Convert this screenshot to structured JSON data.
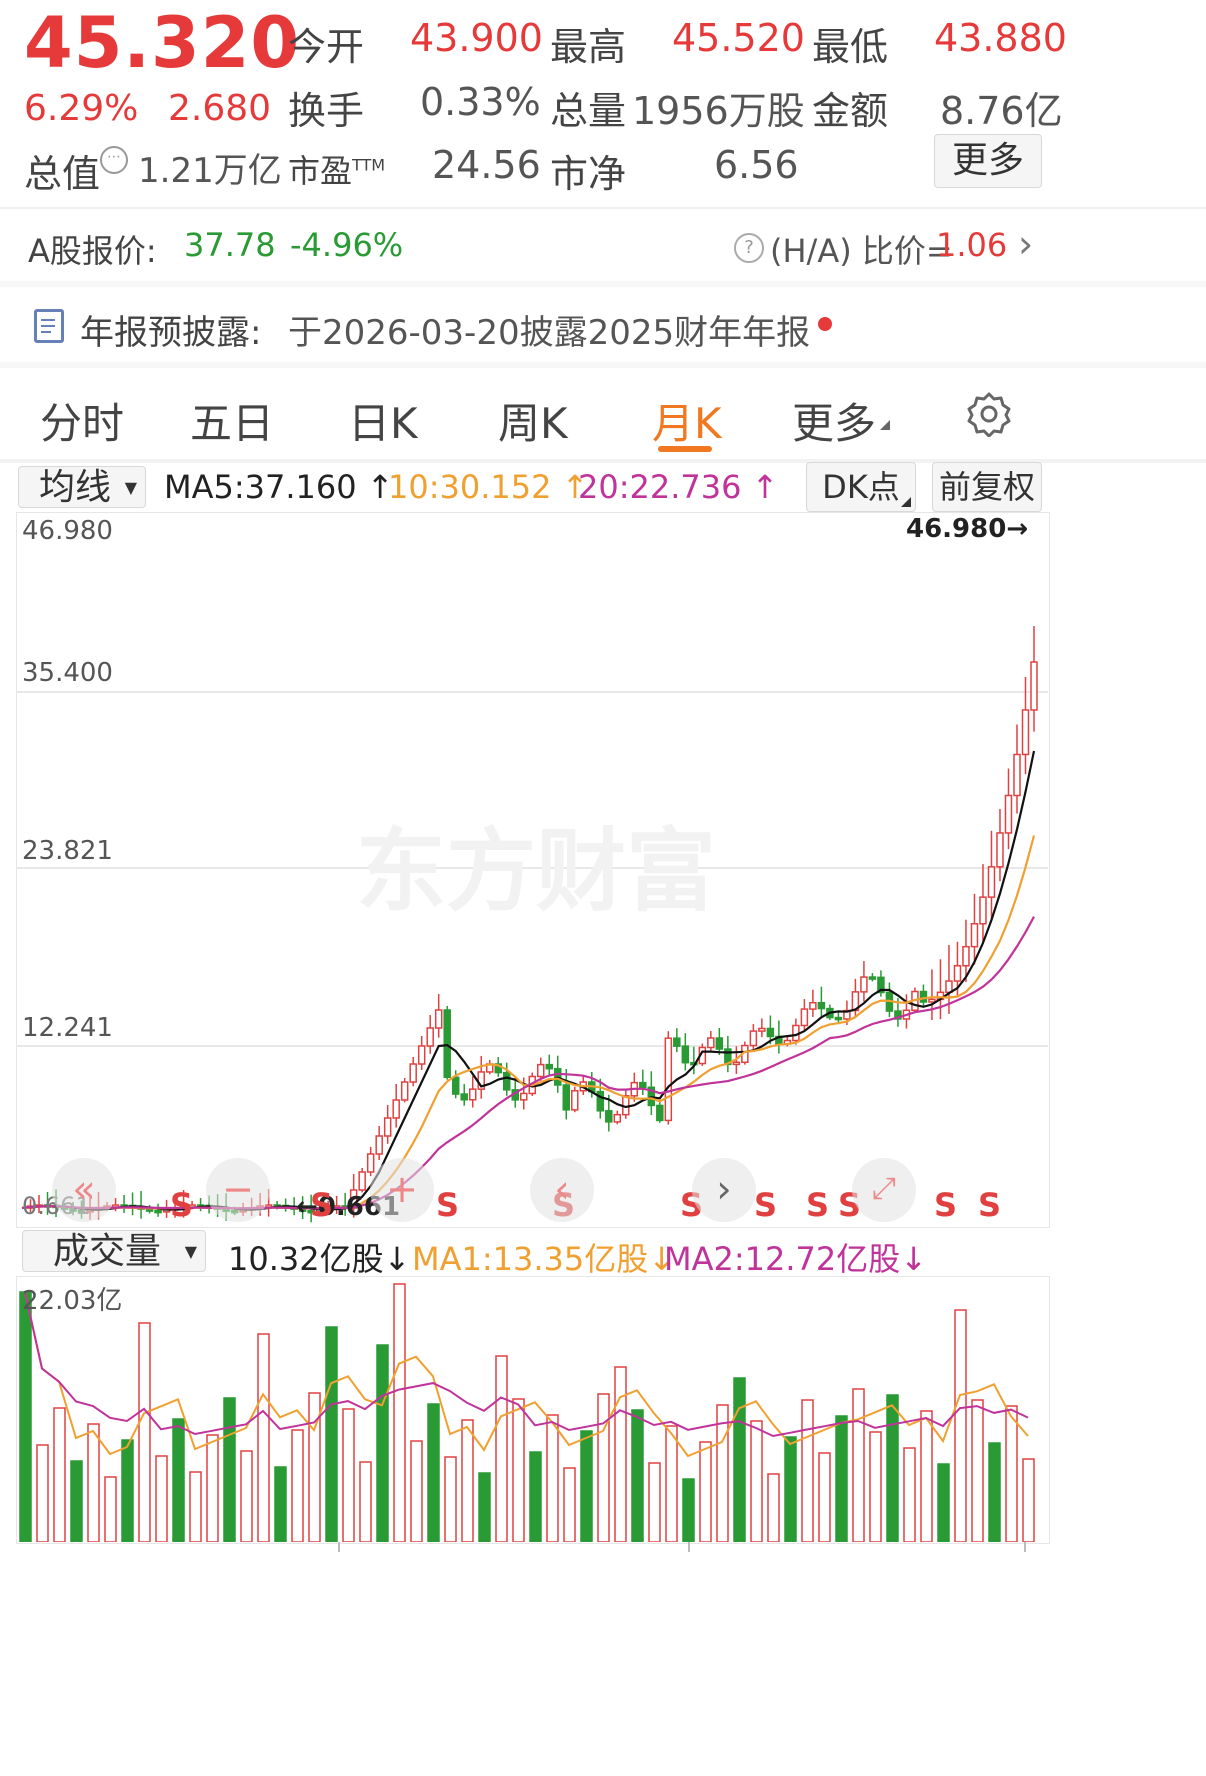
{
  "quote": {
    "price": "45.320",
    "change_pct": "6.29%",
    "change_amt": "2.680",
    "open_label": "今开",
    "open": "43.900",
    "high_label": "最高",
    "high": "45.520",
    "low_label": "最低",
    "low": "43.880",
    "turnover_label": "换手",
    "turnover": "0.33%",
    "volume_label": "总量",
    "volume": "1956万股",
    "amount_label": "金额",
    "amount": "8.76亿",
    "mktcap_label": "总值",
    "mktcap": "1.21万亿",
    "pe_label": "市盈",
    "pe_sup": "TTM",
    "pe": "24.56",
    "pb_label": "市净",
    "pb": "6.56",
    "more_button": "更多"
  },
  "a_share": {
    "label": "A股报价:",
    "price": "37.78",
    "change": "-4.96%",
    "ratio_label": "(H/A) 比价=",
    "ratio": "1.06"
  },
  "annual_report": {
    "label": "年报预披露:",
    "text": "于2026-03-20披露2025财年年报"
  },
  "tabs": [
    {
      "label": "分时"
    },
    {
      "label": "五日"
    },
    {
      "label": "日K"
    },
    {
      "label": "周K"
    },
    {
      "label": "月K"
    },
    {
      "label": "更多"
    }
  ],
  "active_tab": "月K",
  "ma_bar": {
    "selector": "均线",
    "ma5": "MA5:37.160",
    "ma10": "10:30.152",
    "ma20": "20:22.736",
    "dk_button": "DK点",
    "fq_button": "前复权"
  },
  "chart_data": {
    "type": "candlestick",
    "y_ticks": [
      "46.980",
      "35.400",
      "23.821",
      "12.241"
    ],
    "max_label": "46.980",
    "min_label": "0.661",
    "min_label_left": "0.661",
    "signal_label": "S",
    "colors": {
      "up": "#e04040",
      "down": "#2a9a35",
      "ma5": "#111111",
      "ma10": "#f0a030",
      "ma20": "#c0339a"
    }
  },
  "volume_bar": {
    "selector": "成交量",
    "vol": "10.32亿股",
    "ma1": "MA1:13.35亿股",
    "ma2": "MA2:12.72亿股",
    "max_label": "22.03亿"
  },
  "watermark": "东方财富"
}
